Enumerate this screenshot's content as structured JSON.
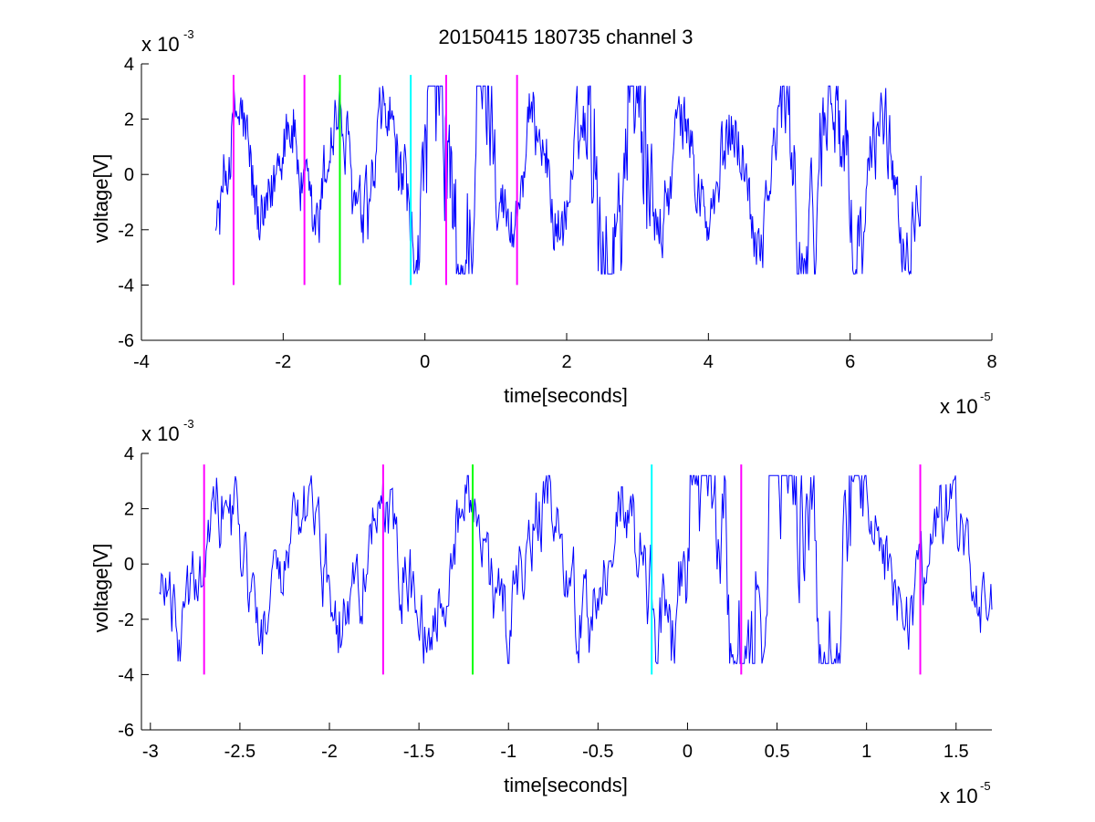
{
  "figure": {
    "title": "20150415 180735 channel 3"
  },
  "chart_data": [
    {
      "type": "line",
      "title": "20150415 180735 channel 3",
      "xlabel": "time[seconds]",
      "ylabel": "voltage[V]",
      "x_exponent": {
        "base": "x 10",
        "power": "-5"
      },
      "y_exponent": {
        "base": "x 10",
        "power": "-3"
      },
      "xlim": [
        -4,
        8
      ],
      "ylim": [
        -6,
        4
      ],
      "xticks": [
        -4,
        -2,
        0,
        2,
        4,
        6,
        8
      ],
      "xtick_labels": [
        "-4",
        "-2",
        "0",
        "2",
        "4",
        "6",
        "8"
      ],
      "yticks": [
        -6,
        -4,
        -2,
        0,
        2,
        4
      ],
      "ytick_labels": [
        "-6",
        "-4",
        "-2",
        "0",
        "2",
        "4"
      ],
      "grid": false,
      "series": [
        {
          "color": "#0000ff",
          "x_range": [
            -2.95,
            7.0
          ],
          "y_range": [
            -3.6,
            3.2
          ]
        }
      ],
      "markers": [
        {
          "x": -2.7,
          "y": [
            -4,
            3.6
          ],
          "color": "#ff00ff"
        },
        {
          "x": -1.7,
          "y": [
            -4,
            3.6
          ],
          "color": "#ff00ff"
        },
        {
          "x": -1.2,
          "y": [
            -4,
            3.6
          ],
          "color": "#00ff00"
        },
        {
          "x": -0.2,
          "y": [
            -4,
            3.6
          ],
          "color": "#00ffff"
        },
        {
          "x": 0.3,
          "y": [
            -4,
            3.6
          ],
          "color": "#ff00ff"
        },
        {
          "x": 1.3,
          "y": [
            -4,
            3.6
          ],
          "color": "#ff00ff"
        }
      ]
    },
    {
      "type": "line",
      "title": "",
      "xlabel": "time[seconds]",
      "ylabel": "voltage[V]",
      "x_exponent": {
        "base": "x 10",
        "power": "-5"
      },
      "y_exponent": {
        "base": "x 10",
        "power": "-3"
      },
      "xlim": [
        -3.05,
        1.7
      ],
      "ylim": [
        -6,
        4
      ],
      "xticks": [
        -3,
        -2.5,
        -2,
        -1.5,
        -1,
        -0.5,
        0,
        0.5,
        1,
        1.5
      ],
      "xtick_labels": [
        "-3",
        "-2.5",
        "-2",
        "-1.5",
        "-1",
        "-0.5",
        "0",
        "0.5",
        "1",
        "1.5"
      ],
      "yticks": [
        -6,
        -4,
        -2,
        0,
        2,
        4
      ],
      "ytick_labels": [
        "-6",
        "-4",
        "-2",
        "0",
        "2",
        "4"
      ],
      "grid": false,
      "series": [
        {
          "color": "#0000ff",
          "x_range": [
            -2.95,
            1.7
          ],
          "y_range": [
            -3.6,
            3.2
          ]
        }
      ],
      "markers": [
        {
          "x": -2.7,
          "y": [
            -4,
            3.6
          ],
          "color": "#ff00ff"
        },
        {
          "x": -1.7,
          "y": [
            -4,
            3.6
          ],
          "color": "#ff00ff"
        },
        {
          "x": -1.2,
          "y": [
            -4,
            3.6
          ],
          "color": "#00ff00"
        },
        {
          "x": -0.2,
          "y": [
            -4,
            3.6
          ],
          "color": "#00ffff"
        },
        {
          "x": 0.3,
          "y": [
            -4,
            3.6
          ],
          "color": "#ff00ff"
        },
        {
          "x": 1.3,
          "y": [
            -4,
            3.6
          ],
          "color": "#ff00ff"
        }
      ]
    }
  ]
}
